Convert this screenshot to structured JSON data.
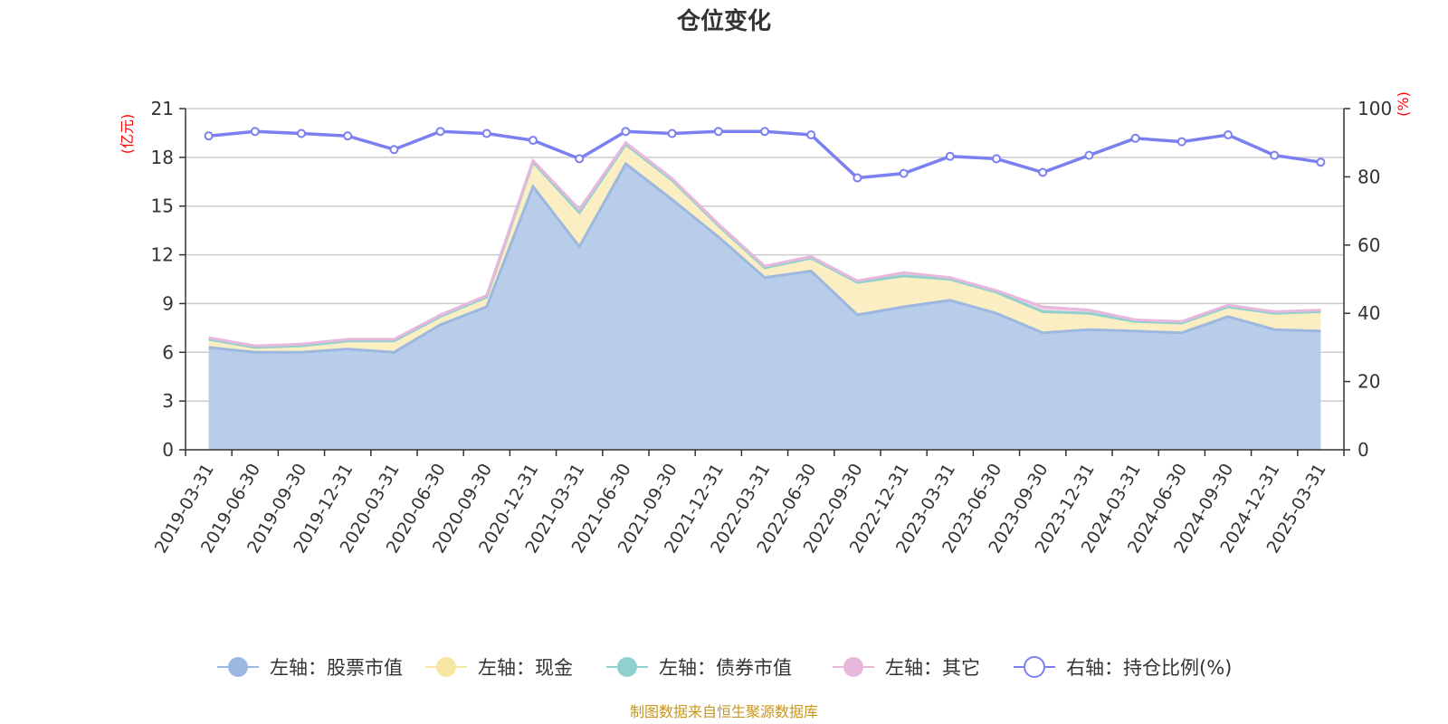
{
  "chart_data": {
    "type": "area",
    "title": "仓位变化",
    "left_unit": "(亿元)",
    "right_unit": "(%)",
    "ylim_left": [
      0,
      21
    ],
    "yticks_left": [
      0,
      3,
      6,
      9,
      12,
      15,
      18,
      21
    ],
    "ylim_right": [
      0,
      100
    ],
    "yticks_right": [
      0,
      20,
      40,
      60,
      80,
      100
    ],
    "grid": true,
    "stacked": true,
    "legend_position": "bottom",
    "categories": [
      "2019-03-31",
      "2019-06-30",
      "2019-09-30",
      "2019-12-31",
      "2020-03-31",
      "2020-06-30",
      "2020-09-30",
      "2020-12-31",
      "2021-03-31",
      "2021-06-30",
      "2021-09-30",
      "2021-12-31",
      "2022-03-31",
      "2022-06-30",
      "2022-09-30",
      "2022-12-31",
      "2023-03-31",
      "2023-06-30",
      "2023-09-30",
      "2023-12-31",
      "2024-03-31",
      "2024-06-30",
      "2024-09-30",
      "2024-12-31",
      "2025-03-31"
    ],
    "series": [
      {
        "name": "左轴：股票市值",
        "axis": "left",
        "stack": true,
        "color": "#9db8e0",
        "fill": "#b8cdea",
        "values": [
          6.3,
          6.0,
          6.0,
          6.2,
          6.0,
          7.7,
          8.8,
          16.2,
          12.5,
          17.6,
          15.4,
          13.1,
          10.6,
          11.0,
          8.3,
          8.8,
          9.2,
          8.4,
          7.2,
          7.4,
          7.3,
          7.2,
          8.2,
          7.4,
          7.3
        ]
      },
      {
        "name": "左轴：现金",
        "axis": "left",
        "stack": true,
        "color": "#f7e6a4",
        "fill": "#faeec2",
        "values": [
          0.5,
          0.3,
          0.4,
          0.5,
          0.7,
          0.5,
          0.6,
          1.5,
          2.1,
          1.2,
          1.2,
          0.7,
          0.6,
          0.8,
          2.0,
          1.9,
          1.3,
          1.3,
          1.3,
          1.0,
          0.6,
          0.6,
          0.6,
          1.0,
          1.2
        ]
      },
      {
        "name": "左轴：债券市值",
        "axis": "left",
        "stack": true,
        "color": "#8fd1d1",
        "fill": "#a8dcdc",
        "values": [
          0,
          0,
          0,
          0,
          0,
          0,
          0,
          0,
          0,
          0,
          0,
          0,
          0,
          0,
          0,
          0,
          0,
          0,
          0,
          0,
          0,
          0,
          0,
          0,
          0
        ]
      },
      {
        "name": "左轴：其它",
        "axis": "left",
        "stack": true,
        "color": "#e8b8dc",
        "fill": "#f0cfe7",
        "values": [
          0.1,
          0.1,
          0.1,
          0.1,
          0.1,
          0.1,
          0.1,
          0.1,
          0.2,
          0.1,
          0.1,
          0.1,
          0.1,
          0.1,
          0.1,
          0.2,
          0.1,
          0.1,
          0.3,
          0.2,
          0.1,
          0.1,
          0.1,
          0.1,
          0.1
        ]
      },
      {
        "name": "右轴：持仓比例(%)",
        "axis": "right",
        "stack": false,
        "color": "#7b7ff0",
        "values": [
          92,
          93.3,
          92.7,
          92,
          88,
          93.3,
          92.7,
          90.7,
          85.3,
          93.3,
          92.7,
          93.3,
          93.3,
          92.3,
          79.7,
          81,
          86,
          85.3,
          81.3,
          86.3,
          91.3,
          90.3,
          92.3,
          86.3,
          84.3
        ]
      }
    ]
  },
  "footer": {
    "source": "制图数据来自恒生聚源数据库"
  }
}
